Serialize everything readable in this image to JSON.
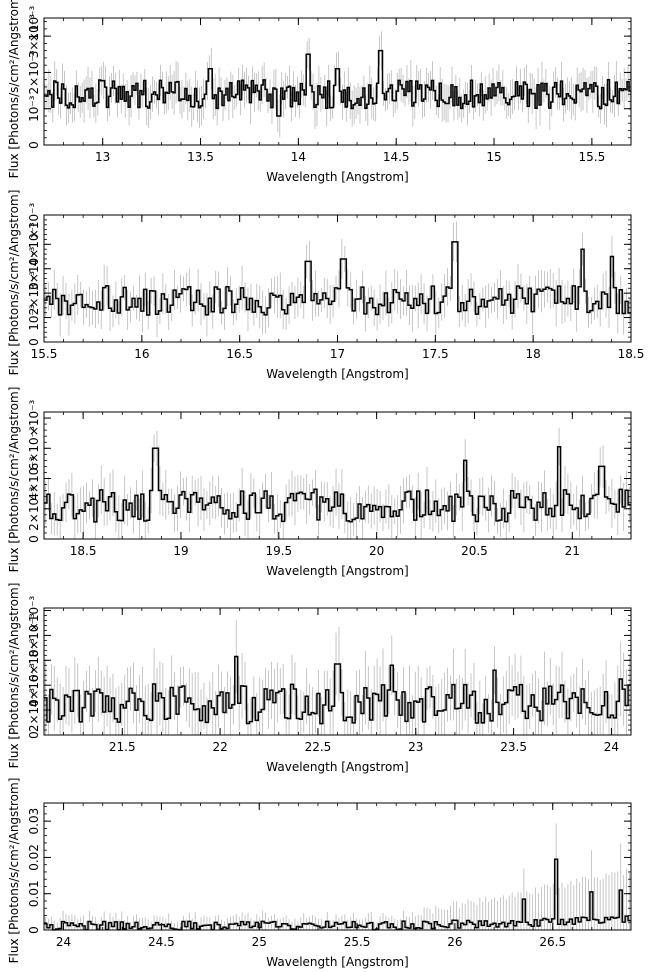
{
  "figure": {
    "panel_count": 5
  },
  "chart_data": [
    {
      "type": "line",
      "style": "step-histogram-with-error-bars",
      "xlabel": "Wavelength [Angstrom]",
      "ylabel": "Flux [Photons/s/cm²/Angstrom]",
      "y_exponent_label": "×10⁻³",
      "xlim": [
        12.7,
        15.7
      ],
      "ylim": [
        0,
        0.0035
      ],
      "xticks": [
        13,
        13.5,
        14,
        14.5,
        15,
        15.5
      ],
      "xtick_labels": [
        "13",
        "13.5",
        "14",
        "14.5",
        "15",
        "15.5"
      ],
      "yticks": [
        0,
        0.001,
        0.002,
        0.003
      ],
      "ytick_labels": [
        "0",
        "10⁻³",
        "2×10⁻³",
        "3×10⁻³"
      ],
      "bin_width": 0.01,
      "baseline": 0.0014,
      "scatter": 0.0004,
      "error": 0.0005,
      "features": [
        [
          13.55,
          0.0021
        ],
        [
          14.05,
          0.0025
        ],
        [
          14.2,
          0.0021
        ],
        [
          14.42,
          0.0026
        ],
        [
          13.9,
          0.0008
        ]
      ],
      "grid": false
    },
    {
      "type": "line",
      "style": "step-histogram-with-error-bars",
      "xlabel": "Wavelength [Angstrom]",
      "ylabel": "Flux [Photons/s/cm²/Angstrom]",
      "y_exponent_label": "×10⁻³",
      "xlim": [
        15.5,
        18.5
      ],
      "ylim": [
        0,
        0.0052
      ],
      "xticks": [
        15.5,
        16,
        16.5,
        17,
        17.5,
        18,
        18.5
      ],
      "xtick_labels": [
        "15.5",
        "16",
        "16.5",
        "17",
        "17.5",
        "18",
        "18.5"
      ],
      "yticks": [
        0,
        0.001,
        0.002,
        0.003,
        0.004
      ],
      "ytick_labels": [
        "0",
        "10⁻³",
        "2×10⁻³",
        "3×10⁻³",
        "4×10⁻³"
      ],
      "bin_width": 0.015,
      "baseline": 0.0017,
      "scatter": 0.0006,
      "error": 0.0008,
      "features": [
        [
          16.85,
          0.0033
        ],
        [
          17.03,
          0.0034
        ],
        [
          17.6,
          0.0041
        ],
        [
          18.25,
          0.0038
        ],
        [
          18.4,
          0.0035
        ]
      ],
      "grid": false
    },
    {
      "type": "line",
      "style": "step-histogram-with-error-bars",
      "xlabel": "Wavelength [Angstrom]",
      "ylabel": "Flux [Photons/s/cm²/Angstrom]",
      "y_exponent_label": "×10⁻³",
      "xlim": [
        18.3,
        21.3
      ],
      "ylim": [
        0,
        0.0084
      ],
      "xticks": [
        18.5,
        19,
        19.5,
        20,
        20.5,
        21
      ],
      "xtick_labels": [
        "18.5",
        "19",
        "19.5",
        "20",
        "20.5",
        "21"
      ],
      "yticks": [
        0,
        0.002,
        0.004,
        0.006,
        0.008
      ],
      "ytick_labels": [
        "0",
        "2×10⁻³",
        "4×10⁻³",
        "6×10⁻³",
        ""
      ],
      "bin_width": 0.015,
      "baseline": 0.0022,
      "scatter": 0.0011,
      "error": 0.0014,
      "features": [
        [
          18.87,
          0.006
        ],
        [
          20.45,
          0.0052
        ],
        [
          20.93,
          0.0061
        ],
        [
          21.15,
          0.0048
        ]
      ],
      "grid": false
    },
    {
      "type": "line",
      "style": "step-histogram-with-error-bars",
      "xlabel": "Wavelength [Angstrom]",
      "ylabel": "Flux [Photons/s/cm²/Angstrom]",
      "y_exponent_label": "×10⁻³",
      "xlim": [
        21.1,
        24.1
      ],
      "ylim": [
        0,
        0.0102
      ],
      "xticks": [
        21.5,
        22,
        22.5,
        23,
        23.5,
        24
      ],
      "xtick_labels": [
        "21.5",
        "22",
        "22.5",
        "23",
        "23.5",
        "24"
      ],
      "yticks": [
        0,
        0.002,
        0.004,
        0.006,
        0.008,
        0.01
      ],
      "ytick_labels": [
        "0",
        "2×10⁻³",
        "4×10⁻³",
        "6×10⁻³",
        "8×10⁻³",
        ""
      ],
      "bin_width": 0.015,
      "baseline": 0.0025,
      "scatter": 0.0016,
      "error": 0.0025,
      "features": [
        [
          22.08,
          0.0063
        ],
        [
          22.6,
          0.0057
        ],
        [
          22.88,
          0.0056
        ],
        [
          23.4,
          0.0052
        ],
        [
          24.05,
          0.0045
        ]
      ],
      "grid": false
    },
    {
      "type": "line",
      "style": "step-histogram-with-error-bars",
      "xlabel": "Wavelength [Angstrom]",
      "ylabel": "Flux [Photons/s/cm²/Angstrom]",
      "y_exponent_label": "",
      "xlim": [
        23.9,
        26.9
      ],
      "ylim": [
        0,
        0.035
      ],
      "xticks": [
        24,
        24.5,
        25,
        25.5,
        26,
        26.5
      ],
      "xtick_labels": [
        "24",
        "24.5",
        "25",
        "25.5",
        "26",
        "26.5"
      ],
      "yticks": [
        0,
        0.01,
        0.02,
        0.03
      ],
      "ytick_labels": [
        "0",
        "0.01",
        "0.02",
        "0.03"
      ],
      "bin_width": 0.015,
      "baseline": 0.0012,
      "scatter": 0.0012,
      "error": 0.0025,
      "features": [
        [
          26.52,
          0.0195
        ],
        [
          26.35,
          0.0085
        ],
        [
          26.7,
          0.0105
        ],
        [
          26.85,
          0.011
        ]
      ],
      "grid": false
    }
  ]
}
